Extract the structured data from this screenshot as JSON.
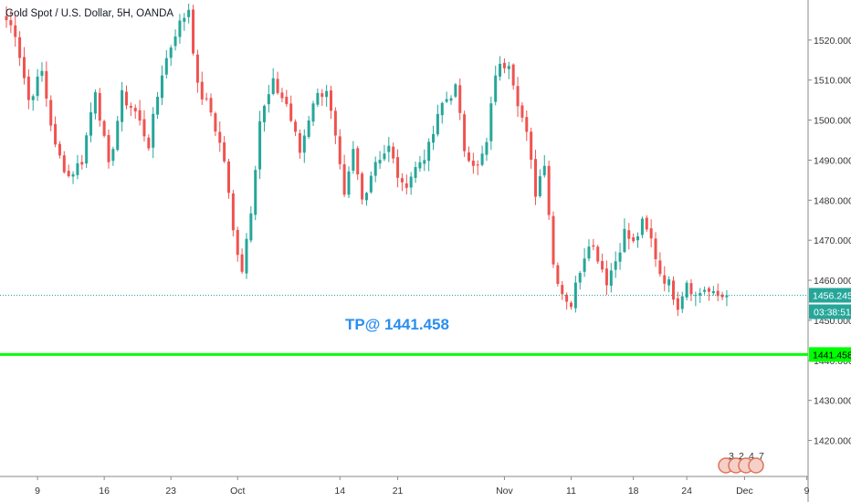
{
  "chart_data": {
    "type": "candlestick",
    "title": "Gold Spot / U.S. Dollar, 5H, OANDA",
    "ylim": [
      1411,
      1530
    ],
    "y_ticks": [
      1420,
      1430,
      1440,
      1450,
      1460,
      1470,
      1480,
      1490,
      1500,
      1510,
      1520
    ],
    "y_tick_labels": [
      "1420.000",
      "1430.000",
      "1440.000",
      "1450.000",
      "1460.000",
      "1470.000",
      "1480.000",
      "1490.000",
      "1500.000",
      "1510.000",
      "1520.000"
    ],
    "x_ticks": [
      {
        "label": "9",
        "index": 7
      },
      {
        "label": "16",
        "index": 22
      },
      {
        "label": "23",
        "index": 37
      },
      {
        "label": "Oct",
        "index": 52
      },
      {
        "label": "14",
        "index": 75
      },
      {
        "label": "21",
        "index": 88
      },
      {
        "label": "Nov",
        "index": 112
      },
      {
        "label": "11",
        "index": 127
      },
      {
        "label": "18",
        "index": 141
      },
      {
        "label": "24",
        "index": 153
      },
      {
        "label": "Dec",
        "index": 166
      },
      {
        "label": "9",
        "index": 180
      }
    ],
    "candle_count_hint": 163,
    "key_prices": [
      {
        "t": 0,
        "p": 1525
      },
      {
        "t": 2,
        "p": 1522
      },
      {
        "t": 5,
        "p": 1505
      },
      {
        "t": 8,
        "p": 1512
      },
      {
        "t": 11,
        "p": 1493
      },
      {
        "t": 14,
        "p": 1486
      },
      {
        "t": 17,
        "p": 1490
      },
      {
        "t": 20,
        "p": 1508
      },
      {
        "t": 23,
        "p": 1488
      },
      {
        "t": 26,
        "p": 1506
      },
      {
        "t": 29,
        "p": 1502
      },
      {
        "t": 32,
        "p": 1494
      },
      {
        "t": 35,
        "p": 1512
      },
      {
        "t": 38,
        "p": 1522
      },
      {
        "t": 41,
        "p": 1528
      },
      {
        "t": 43,
        "p": 1508
      },
      {
        "t": 46,
        "p": 1502
      },
      {
        "t": 49,
        "p": 1490
      },
      {
        "t": 51,
        "p": 1472
      },
      {
        "t": 53,
        "p": 1463
      },
      {
        "t": 55,
        "p": 1478
      },
      {
        "t": 57,
        "p": 1500
      },
      {
        "t": 60,
        "p": 1509
      },
      {
        "t": 63,
        "p": 1504
      },
      {
        "t": 66,
        "p": 1492
      },
      {
        "t": 69,
        "p": 1505
      },
      {
        "t": 72,
        "p": 1508
      },
      {
        "t": 74,
        "p": 1495
      },
      {
        "t": 76,
        "p": 1480
      },
      {
        "t": 78,
        "p": 1492
      },
      {
        "t": 80,
        "p": 1480
      },
      {
        "t": 83,
        "p": 1490
      },
      {
        "t": 86,
        "p": 1493
      },
      {
        "t": 89,
        "p": 1483
      },
      {
        "t": 92,
        "p": 1488
      },
      {
        "t": 95,
        "p": 1493
      },
      {
        "t": 98,
        "p": 1504
      },
      {
        "t": 101,
        "p": 1508
      },
      {
        "t": 103,
        "p": 1493
      },
      {
        "t": 106,
        "p": 1488
      },
      {
        "t": 108,
        "p": 1494
      },
      {
        "t": 110,
        "p": 1512
      },
      {
        "t": 113,
        "p": 1515
      },
      {
        "t": 115,
        "p": 1505
      },
      {
        "t": 117,
        "p": 1496
      },
      {
        "t": 119,
        "p": 1482
      },
      {
        "t": 121,
        "p": 1490
      },
      {
        "t": 123,
        "p": 1464
      },
      {
        "t": 125,
        "p": 1457
      },
      {
        "t": 127,
        "p": 1454
      },
      {
        "t": 129,
        "p": 1463
      },
      {
        "t": 131,
        "p": 1470
      },
      {
        "t": 133,
        "p": 1466
      },
      {
        "t": 135,
        "p": 1460
      },
      {
        "t": 137,
        "p": 1465
      },
      {
        "t": 139,
        "p": 1472
      },
      {
        "t": 141,
        "p": 1469
      },
      {
        "t": 143,
        "p": 1474
      },
      {
        "t": 145,
        "p": 1470
      },
      {
        "t": 147,
        "p": 1462
      },
      {
        "t": 149,
        "p": 1459
      },
      {
        "t": 151,
        "p": 1454
      },
      {
        "t": 153,
        "p": 1460
      },
      {
        "t": 155,
        "p": 1456
      },
      {
        "t": 157,
        "p": 1458
      },
      {
        "t": 159,
        "p": 1456
      }
    ],
    "annotation": {
      "text": "TP@ 1441.458",
      "color": "#2196f3"
    },
    "target_line": {
      "value": 1441.458,
      "label": "1441.458",
      "color": "#00ff00"
    },
    "last_price": {
      "value": 1456.245,
      "label": "1456.245",
      "color": "#26a69a"
    },
    "countdown": {
      "label": "03:38:51"
    },
    "events": [
      "3",
      "2",
      "4",
      "7"
    ],
    "colors": {
      "up": "#26a69a",
      "down": "#ef5350",
      "background": "#ffffff",
      "axis_text": "#333333"
    },
    "grid": false
  }
}
